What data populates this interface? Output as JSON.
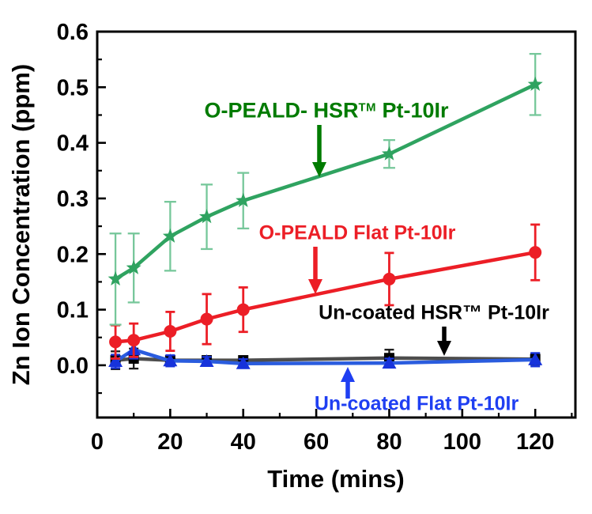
{
  "figure": {
    "background": "#ffffff",
    "frame_color": "#000000"
  },
  "chart_data": {
    "type": "line",
    "title": "",
    "xlabel": "Time (mins)",
    "ylabel": "Zn Ion Concentration (ppm)",
    "grid": false,
    "legend_position": "inline-annotations",
    "xlim": [
      0,
      131
    ],
    "ylim": [
      -0.094,
      0.6
    ],
    "x_major_ticks": [
      0,
      20,
      40,
      60,
      80,
      100,
      120
    ],
    "x_tick_labels": [
      "0",
      "20",
      "40",
      "60",
      "80",
      "100",
      "120"
    ],
    "x_minor_ticks": [
      10,
      30,
      50,
      70,
      90,
      110,
      130
    ],
    "y_major_ticks": [
      0,
      0.1,
      0.2,
      0.3,
      0.4,
      0.5,
      0.6
    ],
    "y_tick_labels": [
      "0.0",
      "0.1",
      "0.2",
      "0.3",
      "0.4",
      "0.5",
      "0.6"
    ],
    "y_minor_ticks": [
      -0.05,
      0.05,
      0.15,
      0.25,
      0.35,
      0.45,
      0.55
    ],
    "x": [
      5,
      10,
      20,
      30,
      40,
      80,
      120
    ],
    "series": [
      {
        "name": "Un-coated HSR™ Pt-10Ir",
        "marker": "square",
        "line_color": "#4D4D4D",
        "marker_color": "#000000",
        "error_color": "#1A1A1A",
        "values": [
          0.009,
          0.012,
          0.009,
          0.009,
          0.009,
          0.013,
          0.011
        ],
        "errors": [
          0.016,
          0.018,
          0.008,
          0.006,
          0.006,
          0.015,
          0.01
        ]
      },
      {
        "name": "Un-coated Flat Pt-10Ir",
        "marker": "triangle",
        "line_color": "#2A5CDE",
        "marker_color": "#1733DB",
        "error_color": "#1733DB",
        "values": [
          0.007,
          0.028,
          0.008,
          0.007,
          0.003,
          0.004,
          0.01
        ],
        "errors": [
          0.012,
          0.016,
          0.01,
          0.008,
          0.008,
          0.008,
          0.012
        ]
      },
      {
        "name": "O-PEALD Flat Pt-10Ir",
        "marker": "circle",
        "line_color": "#EC1E26",
        "marker_color": "#EC1E26",
        "error_color": "#EC1E26",
        "values": [
          0.042,
          0.045,
          0.061,
          0.083,
          0.1,
          0.155,
          0.203
        ],
        "errors": [
          0.03,
          0.03,
          0.035,
          0.045,
          0.04,
          0.047,
          0.05
        ]
      },
      {
        "name": "O-PEALD- HSR™ Pt-10Ir",
        "marker": "star",
        "line_color": "#2FA360",
        "marker_color": "#2FA360",
        "error_color": "#76C79A",
        "values": [
          0.155,
          0.175,
          0.232,
          0.267,
          0.296,
          0.38,
          0.505
        ],
        "errors": [
          0.082,
          0.062,
          0.062,
          0.058,
          0.05,
          0.025,
          0.055
        ]
      }
    ],
    "annotations": [
      {
        "id": "green-label",
        "prefix": "O-PEALD- HSR",
        "sup": "TM",
        "suffix": " Pt-10Ir",
        "color": "#007B00",
        "cx": 413,
        "cy": 140,
        "font_px": 27,
        "arrow": {
          "x": 404,
          "y_tail": 158,
          "y_tip": 224
        }
      },
      {
        "id": "red-label",
        "prefix": "O-PEALD Flat Pt-10Ir",
        "sup": "",
        "suffix": "",
        "color": "#EC1E26",
        "cx": 452,
        "cy": 295,
        "font_px": 25,
        "arrow": {
          "x": 399,
          "y_tail": 312,
          "y_tip": 372
        }
      },
      {
        "id": "black-label",
        "prefix": "Un-coated HSR™ Pt-10Ir",
        "sup": "",
        "suffix": "",
        "color": "#000000",
        "cx": 549,
        "cy": 396,
        "font_px": 25,
        "arrow": {
          "x": 562,
          "y_tail": 413,
          "y_tip": 450
        }
      },
      {
        "id": "blue-label",
        "prefix": "Un-coated Flat Pt-10Ir",
        "sup": "",
        "suffix": "",
        "color": "#1F3FF2",
        "cx": 527,
        "cy": 511,
        "font_px": 25,
        "arrow": {
          "x": 440,
          "y_tail": 504,
          "y_tip": 464
        }
      }
    ]
  }
}
